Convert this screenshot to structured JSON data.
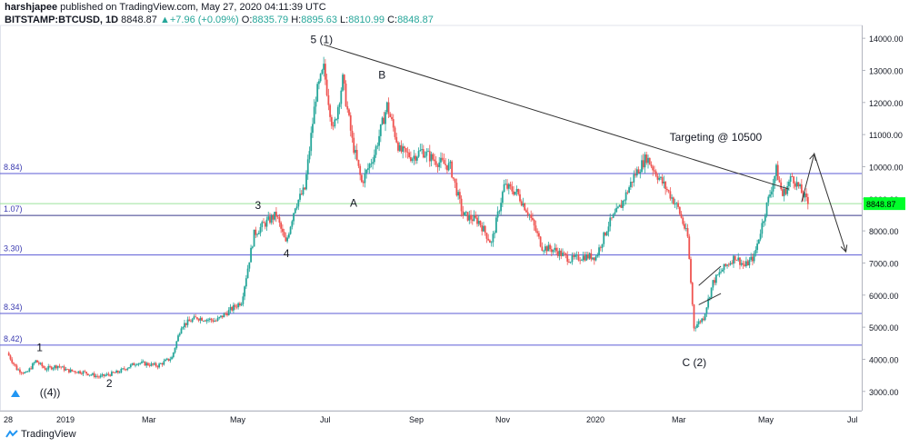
{
  "header": {
    "line1_user": "harshjapee",
    "line1_rest": "published on TradingView.com, May 27, 2020 04:11:39 UTC",
    "symbol": "BITSTAMP:BTCUSD, 1D",
    "last": "8848.87",
    "change": "+7.96 (+0.09%)",
    "o_label": "O:",
    "o_val": "8835.79",
    "h_label": "H:",
    "h_val": "8895.63",
    "l_label": "L:",
    "l_val": "8810.99",
    "c_label": "C:",
    "c_val": "8848.87"
  },
  "footer": {
    "brand": "TradingView"
  },
  "colors": {
    "up": "#26a69a",
    "down": "#ef5350",
    "fib_line": "#5b5bd6",
    "green_line": "#9be39b",
    "price_badge": "#00ff2a"
  },
  "chart_data": {
    "type": "candlestick",
    "symbol": "BITSTAMP:BTCUSD",
    "interval": "1D",
    "x_ticks": [
      "28",
      "2019",
      "Mar",
      "May",
      "Jul",
      "Sep",
      "Nov",
      "2020",
      "Mar",
      "May",
      "Jul"
    ],
    "y_ticks": [
      "14000.00",
      "13000.00",
      "12000.00",
      "11000.00",
      "10000.00",
      "9000.00",
      "8000.00",
      "7000.00",
      "6000.00",
      "5000.00",
      "4000.00",
      "3000.00"
    ],
    "ylim": [
      2400,
      14400
    ],
    "last_price_label": "8848.87",
    "fib_labels": [
      "8.84)",
      "1.07)",
      "3.30)",
      "8.34)",
      "8.42)"
    ],
    "fib_levels": [
      9788,
      8480,
      7250,
      5430,
      4440
    ],
    "green_level": 8849,
    "close_series": [
      {
        "t": 0,
        "v": 4200
      },
      {
        "t": 6,
        "v": 3700
      },
      {
        "t": 12,
        "v": 3550
      },
      {
        "t": 18,
        "v": 3950
      },
      {
        "t": 24,
        "v": 3700
      },
      {
        "t": 32,
        "v": 3800
      },
      {
        "t": 38,
        "v": 3650
      },
      {
        "t": 48,
        "v": 3600
      },
      {
        "t": 58,
        "v": 3450
      },
      {
        "t": 70,
        "v": 3600
      },
      {
        "t": 82,
        "v": 3900
      },
      {
        "t": 95,
        "v": 3800
      },
      {
        "t": 104,
        "v": 4050
      },
      {
        "t": 110,
        "v": 5050
      },
      {
        "t": 120,
        "v": 5300
      },
      {
        "t": 132,
        "v": 5200
      },
      {
        "t": 140,
        "v": 5500
      },
      {
        "t": 148,
        "v": 5800
      },
      {
        "t": 156,
        "v": 7900
      },
      {
        "t": 162,
        "v": 8200
      },
      {
        "t": 170,
        "v": 8500
      },
      {
        "t": 176,
        "v": 7600
      },
      {
        "t": 182,
        "v": 8800
      },
      {
        "t": 188,
        "v": 9300
      },
      {
        "t": 195,
        "v": 12200
      },
      {
        "t": 200,
        "v": 13050
      },
      {
        "t": 206,
        "v": 11100
      },
      {
        "t": 212,
        "v": 12700
      },
      {
        "t": 218,
        "v": 10800
      },
      {
        "t": 224,
        "v": 9500
      },
      {
        "t": 232,
        "v": 10400
      },
      {
        "t": 240,
        "v": 11900
      },
      {
        "t": 248,
        "v": 10500
      },
      {
        "t": 256,
        "v": 10300
      },
      {
        "t": 262,
        "v": 10500
      },
      {
        "t": 270,
        "v": 10200
      },
      {
        "t": 280,
        "v": 10000
      },
      {
        "t": 288,
        "v": 8500
      },
      {
        "t": 298,
        "v": 8300
      },
      {
        "t": 306,
        "v": 7600
      },
      {
        "t": 314,
        "v": 9400
      },
      {
        "t": 322,
        "v": 9200
      },
      {
        "t": 330,
        "v": 8500
      },
      {
        "t": 338,
        "v": 7500
      },
      {
        "t": 346,
        "v": 7400
      },
      {
        "t": 356,
        "v": 7100
      },
      {
        "t": 364,
        "v": 7200
      },
      {
        "t": 372,
        "v": 7200
      },
      {
        "t": 380,
        "v": 8200
      },
      {
        "t": 388,
        "v": 8800
      },
      {
        "t": 396,
        "v": 9700
      },
      {
        "t": 404,
        "v": 10300
      },
      {
        "t": 410,
        "v": 9800
      },
      {
        "t": 418,
        "v": 9200
      },
      {
        "t": 424,
        "v": 8700
      },
      {
        "t": 430,
        "v": 7800
      },
      {
        "t": 434,
        "v": 5000
      },
      {
        "t": 440,
        "v": 5300
      },
      {
        "t": 446,
        "v": 6400
      },
      {
        "t": 452,
        "v": 6800
      },
      {
        "t": 460,
        "v": 7200
      },
      {
        "t": 466,
        "v": 6900
      },
      {
        "t": 472,
        "v": 7200
      },
      {
        "t": 480,
        "v": 8800
      },
      {
        "t": 486,
        "v": 9900
      },
      {
        "t": 490,
        "v": 9100
      },
      {
        "t": 496,
        "v": 9700
      },
      {
        "t": 502,
        "v": 9200
      },
      {
        "t": 506,
        "v": 8850
      }
    ],
    "trendline": {
      "from": {
        "t": 200,
        "v": 13800
      },
      "to": {
        "t": 494,
        "v": 9300
      }
    },
    "projection": [
      {
        "t": 502,
        "v": 8900
      },
      {
        "t": 510,
        "v": 10400
      },
      {
        "t": 530,
        "v": 7350
      }
    ],
    "triangle": [
      [
        437,
        6300
      ],
      [
        451,
        6900
      ],
      [
        437,
        5700
      ],
      [
        451,
        6050
      ]
    ],
    "annotations": [
      {
        "text": "5 (1)",
        "t": 195,
        "v": 13850
      },
      {
        "text": "B",
        "t": 238,
        "v": 12750
      },
      {
        "text": "3",
        "t": 160,
        "v": 8690
      },
      {
        "text": "A",
        "t": 220,
        "v": 8760
      },
      {
        "text": "4",
        "t": 178,
        "v": 7180
      },
      {
        "text": "1",
        "t": 22,
        "v": 4250
      },
      {
        "text": "2",
        "t": 66,
        "v": 3130
      },
      {
        "text": "((4))",
        "t": 24,
        "v": 2850
      },
      {
        "text": "C (2)",
        "t": 430,
        "v": 3780
      },
      {
        "text": "Targeting @ 10500",
        "t": 422,
        "v": 10800
      }
    ]
  }
}
